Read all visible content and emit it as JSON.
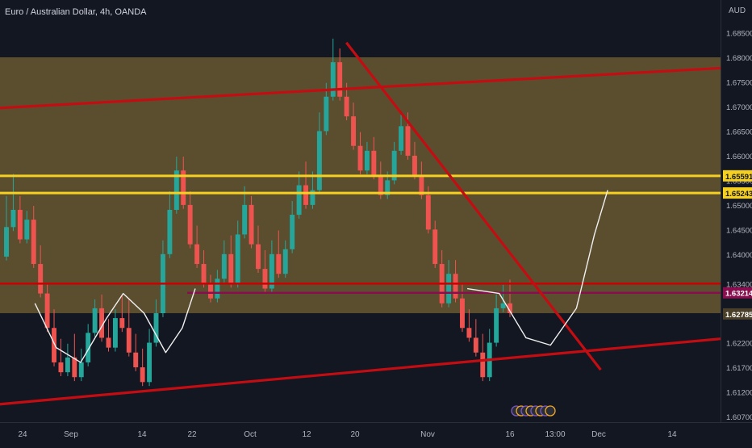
{
  "chart_data": {
    "type": "candlestick",
    "title": "Euro / Australian Dollar, 4h, OANDA",
    "currency": "AUD",
    "ylim": [
      1.6055,
      1.6875
    ],
    "y_ticks": [
      "1.68500",
      "1.68000",
      "1.67500",
      "1.67000",
      "1.66500",
      "1.66000",
      "1.65500",
      "1.65000",
      "1.64500",
      "1.64000",
      "1.63400",
      "1.62200",
      "1.61700",
      "1.61200",
      "1.60700"
    ],
    "x_ticks": [
      "24",
      "Sep",
      "14",
      "22",
      "Oct",
      "12",
      "20",
      "Nov",
      "16",
      "13:00",
      "Dec",
      "14"
    ],
    "price_labels": [
      {
        "label": "1.65591",
        "value": 1.65591,
        "color": "#f5d020"
      },
      {
        "label": "1.65243",
        "value": 1.65243,
        "color": "#f5d020"
      },
      {
        "label": "1.63214",
        "value": 1.63214,
        "color": "#880e4f"
      },
      {
        "label": "1.62785",
        "value": 1.62785,
        "color": "#4a3f28"
      }
    ],
    "zones": [
      {
        "name": "upper-zone",
        "from": 1.653,
        "to": 1.68,
        "color": "#6b5a32"
      },
      {
        "name": "lower-zone",
        "from": 1.628,
        "to": 1.653,
        "color": "#6b5a32"
      }
    ],
    "horizontal_lines": [
      {
        "name": "resistance-1",
        "value": 1.65591,
        "color": "#f5d020"
      },
      {
        "name": "resistance-2",
        "value": 1.65243,
        "color": "#f5d020"
      },
      {
        "name": "support-red",
        "value": 1.634,
        "color": "#cc0000"
      },
      {
        "name": "pivot-purple",
        "value": 1.63214,
        "color": "#880e4f"
      }
    ],
    "candles": [
      [
        1.6395,
        1.651,
        1.6455
      ],
      [
        1.6455,
        1.6555,
        1.649
      ],
      [
        1.649,
        1.651,
        1.643
      ],
      [
        1.643,
        1.648,
        1.647
      ],
      [
        1.647,
        1.649,
        1.638
      ],
      [
        1.638,
        1.641,
        1.632
      ],
      [
        1.632,
        1.633,
        1.625
      ],
      [
        1.625,
        1.628,
        1.618
      ],
      [
        1.618,
        1.622,
        1.616
      ],
      [
        1.616,
        1.621,
        1.619
      ],
      [
        1.619,
        1.623,
        1.615
      ],
      [
        1.615,
        1.62,
        1.618
      ],
      [
        1.618,
        1.625,
        1.624
      ],
      [
        1.624,
        1.63,
        1.629
      ],
      [
        1.629,
        1.631,
        1.623
      ],
      [
        1.623,
        1.626,
        1.621
      ],
      [
        1.621,
        1.628,
        1.627
      ],
      [
        1.627,
        1.631,
        1.625
      ],
      [
        1.625,
        1.63,
        1.62
      ],
      [
        1.62,
        1.623,
        1.617
      ],
      [
        1.617,
        1.62,
        1.614
      ],
      [
        1.614,
        1.624,
        1.622
      ],
      [
        1.622,
        1.63,
        1.628
      ],
      [
        1.628,
        1.642,
        1.64
      ],
      [
        1.64,
        1.652,
        1.649
      ],
      [
        1.649,
        1.659,
        1.657
      ],
      [
        1.657,
        1.659,
        1.65
      ],
      [
        1.65,
        1.652,
        1.642
      ],
      [
        1.642,
        1.645,
        1.638
      ],
      [
        1.638,
        1.64,
        1.634
      ],
      [
        1.634,
        1.635,
        1.631
      ],
      [
        1.631,
        1.636,
        1.635
      ],
      [
        1.635,
        1.642,
        1.64
      ],
      [
        1.64,
        1.643,
        1.634
      ],
      [
        1.634,
        1.646,
        1.644
      ],
      [
        1.644,
        1.653,
        1.65
      ],
      [
        1.65,
        1.651,
        1.642
      ],
      [
        1.642,
        1.645,
        1.637
      ],
      [
        1.637,
        1.64,
        1.633
      ],
      [
        1.633,
        1.642,
        1.64
      ],
      [
        1.64,
        1.644,
        1.636
      ],
      [
        1.636,
        1.642,
        1.641
      ],
      [
        1.641,
        1.65,
        1.648
      ],
      [
        1.648,
        1.656,
        1.654
      ],
      [
        1.654,
        1.658,
        1.65
      ],
      [
        1.65,
        1.656,
        1.653
      ],
      [
        1.653,
        1.668,
        1.665
      ],
      [
        1.665,
        1.674,
        1.672
      ],
      [
        1.672,
        1.683,
        1.679
      ],
      [
        1.679,
        1.681,
        1.672
      ],
      [
        1.672,
        1.674,
        1.668
      ],
      [
        1.668,
        1.67,
        1.662
      ],
      [
        1.662,
        1.664,
        1.657
      ],
      [
        1.657,
        1.662,
        1.661
      ],
      [
        1.661,
        1.663,
        1.656
      ],
      [
        1.656,
        1.658,
        1.652
      ],
      [
        1.652,
        1.656,
        1.655
      ],
      [
        1.655,
        1.662,
        1.661
      ],
      [
        1.661,
        1.668,
        1.666
      ],
      [
        1.666,
        1.668,
        1.66
      ],
      [
        1.66,
        1.662,
        1.656
      ],
      [
        1.656,
        1.658,
        1.652
      ],
      [
        1.652,
        1.653,
        1.645
      ],
      [
        1.645,
        1.646,
        1.638
      ],
      [
        1.638,
        1.64,
        1.63
      ],
      [
        1.63,
        1.638,
        1.636
      ],
      [
        1.636,
        1.638,
        1.631
      ],
      [
        1.631,
        1.633,
        1.625
      ],
      [
        1.625,
        1.628,
        1.623
      ],
      [
        1.623,
        1.626,
        1.62
      ],
      [
        1.62,
        1.623,
        1.615
      ],
      [
        1.615,
        1.624,
        1.622
      ],
      [
        1.622,
        1.631,
        1.629
      ],
      [
        1.629,
        1.633,
        1.63
      ],
      [
        1.63,
        1.634,
        1.628
      ]
    ],
    "projection_path": [
      [
        0.6485,
        1.633
      ],
      [
        0.693,
        1.632
      ],
      [
        0.73,
        1.623
      ],
      [
        0.764,
        1.6215
      ],
      [
        0.8,
        1.629
      ],
      [
        0.825,
        1.644
      ],
      [
        0.8434,
        1.653
      ]
    ],
    "pattern_path": [
      [
        0.0485,
        1.63
      ],
      [
        0.078,
        1.621
      ],
      [
        0.112,
        1.618
      ],
      [
        0.148,
        1.627
      ],
      [
        0.171,
        1.632
      ],
      [
        0.2,
        1.628
      ],
      [
        0.23,
        1.62
      ],
      [
        0.253,
        1.625
      ],
      [
        0.271,
        1.633
      ]
    ]
  }
}
